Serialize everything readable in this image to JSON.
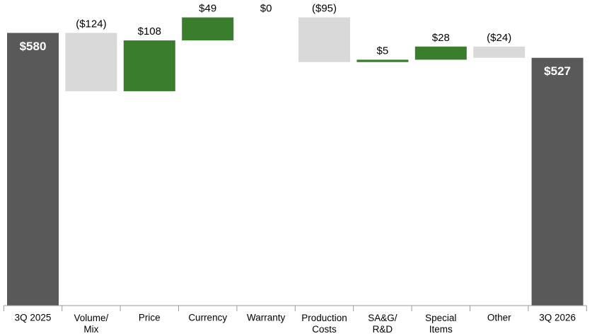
{
  "chart_data": {
    "type": "waterfall",
    "categories": [
      "3Q 2025",
      "Volume/\nMix",
      "Price",
      "Currency",
      "Warranty",
      "Production\nCosts",
      "SA&G/\nR&D",
      "Special\nItems",
      "Other",
      "3Q 2026"
    ],
    "values": [
      580,
      -124,
      108,
      49,
      0,
      -95,
      5,
      28,
      -24,
      527
    ],
    "value_labels": [
      "$580",
      "($124)",
      "$108",
      "$49",
      "$0",
      "($95)",
      "$5",
      "$28",
      "($24)",
      "$527"
    ],
    "colors": {
      "total": "#595959",
      "increase": "#3a7d2c",
      "decrease": "#d9d9d9"
    },
    "ylim": [
      0,
      650
    ]
  }
}
